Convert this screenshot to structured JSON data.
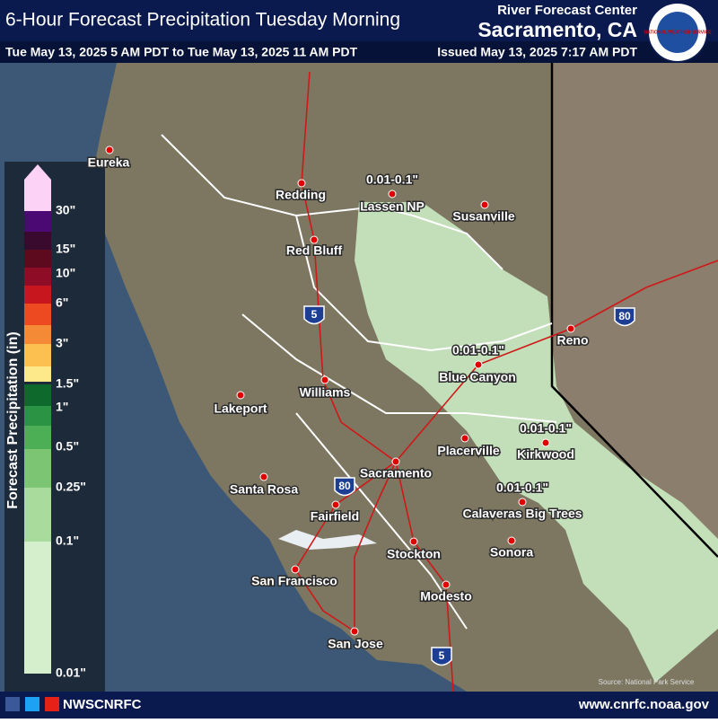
{
  "header": {
    "title": "6-Hour Forecast Precipitation Tuesday Morning",
    "center": "River Forecast Center",
    "office": "Sacramento, CA",
    "valid_period": "Tue May 13, 2025 5 AM PDT to Tue May 13, 2025 11 AM PDT",
    "issued": "Issued May 13, 2025 7:17 AM PDT"
  },
  "logo": {
    "text": "NATIONAL WEATHER SERVICE"
  },
  "legend": {
    "title": "Forecast Precipitation (in)",
    "labels": [
      "30\"",
      "15\"",
      "10\"",
      "6\"",
      "3\"",
      "1.5\"",
      "1\"",
      "0.5\"",
      "0.25\"",
      "0.1\"",
      "0.01\""
    ],
    "colors": [
      "#fcd2f7",
      "#4b0a73",
      "#3a0a2e",
      "#5e0a1e",
      "#8e0c26",
      "#c8161e",
      "#ee4a22",
      "#f58a36",
      "#fbc050",
      "#fde88a",
      "#0d6a2c",
      "#2a9444",
      "#4caf55",
      "#7cc673",
      "#a9db9c",
      "#d5efcd"
    ]
  },
  "cities": [
    {
      "label": "Eureka"
    },
    {
      "label": "Redding"
    },
    {
      "label": "Lassen NP"
    },
    {
      "label": "Susanville"
    },
    {
      "label": "Red Bluff"
    },
    {
      "label": "Reno"
    },
    {
      "label": "Blue Canyon"
    },
    {
      "label": "Williams"
    },
    {
      "label": "Lakeport"
    },
    {
      "label": "Placerville"
    },
    {
      "label": "Kirkwood"
    },
    {
      "label": "Sacramento"
    },
    {
      "label": "Santa Rosa"
    },
    {
      "label": "Fairfield"
    },
    {
      "label": "Calaveras Big Trees"
    },
    {
      "label": "Sonora"
    },
    {
      "label": "Stockton"
    },
    {
      "label": "San Francisco"
    },
    {
      "label": "Modesto"
    },
    {
      "label": "San Jose"
    }
  ],
  "annotations": [
    "0.01-0.1\"",
    "0.01-0.1\"",
    "0.01-0.1\"",
    "0.01-0.1\""
  ],
  "shields": [
    "5",
    "80",
    "80",
    "5"
  ],
  "source": "Source: National Park Service",
  "footer": {
    "handle": "NWSCNRFC",
    "url": "www.cnrfc.noaa.gov"
  }
}
